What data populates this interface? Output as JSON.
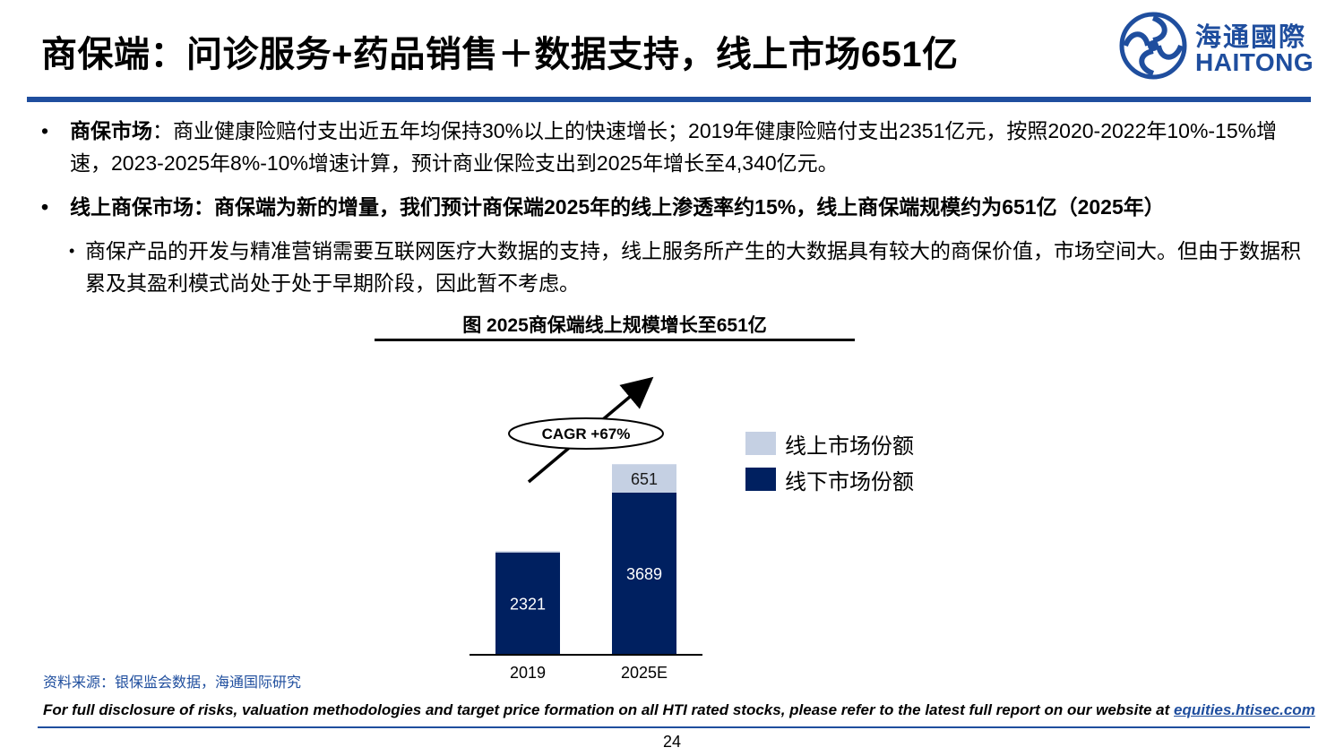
{
  "header": {
    "title": "商保端：问诊服务+药品销售＋数据支持，线上市场651亿",
    "logo_cn": "海通國際",
    "logo_en": "HAITONG"
  },
  "bullets": {
    "b1_label": "商保市场",
    "b1_text": "：商业健康险赔付支出近五年均保持30%以上的快速增长；2019年健康险赔付支出2351亿元，按照2020-2022年10%-15%增速，2023-2025年8%-10%增速计算，预计商业保险支出到2025年增长至4,340亿元。",
    "b2_text": "线上商保市场：商保端为新的增量，我们预计商保端2025年的线上渗透率约15%，线上商保端规模约为651亿（2025年）",
    "b3_text": "商保产品的开发与精准营销需要互联网医疗大数据的支持，线上服务所产生的大数据具有较大的商保价值，市场空间大。但由于数据积累及其盈利模式尚处于处于早期阶段，因此暂不考虑。"
  },
  "figure": {
    "title": "图 2025商保端线上规模增长至651亿",
    "cagr_label": "CAGR +67%"
  },
  "chart_data": {
    "type": "bar",
    "stacked": true,
    "categories": [
      "2019",
      "2025E"
    ],
    "series": [
      {
        "name": "线下市场份额",
        "values": [
          2321,
          3689
        ],
        "color": "#002060"
      },
      {
        "name": "线上市场份额",
        "values": [
          30,
          651
        ],
        "color": "#c5d0e3"
      }
    ],
    "data_labels": {
      "offline": [
        "2321",
        "3689"
      ],
      "online": [
        "",
        "651"
      ]
    },
    "legend_position": "right",
    "grid": false
  },
  "legend": [
    {
      "label": "线上市场份额",
      "color": "#c5d0e3"
    },
    {
      "label": "线下市场份额",
      "color": "#002060"
    }
  ],
  "footer": {
    "source": "资料来源：银保监会数据，海通国际研究",
    "disclaimer": "For full disclosure of risks, valuation methodologies and target price formation on all HTI rated stocks, please refer to the latest full report on our website at ",
    "link": "equities.htisec.com",
    "page": "24"
  },
  "colors": {
    "brand": "#1f4e9e",
    "dark_bar": "#002060",
    "light_bar": "#c5d0e3"
  }
}
